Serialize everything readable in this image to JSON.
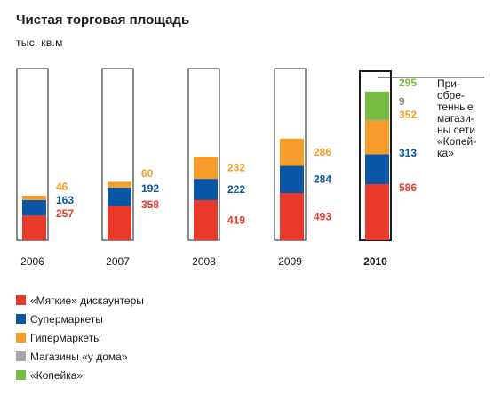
{
  "title": "Чистая торговая площадь",
  "subtitle": "тыс. кв.м",
  "colors": {
    "soft_discounters": "#e8392b",
    "supermarkets": "#0a56a5",
    "hypermarkets": "#f59c2b",
    "convenience": "#a6a6a6",
    "kopeika": "#77bd43"
  },
  "legend": [
    {
      "key": "soft_discounters",
      "label": "«Мягкие» дискаунтеры"
    },
    {
      "key": "supermarkets",
      "label": "Супермаркеты"
    },
    {
      "key": "hypermarkets",
      "label": "Гипермаркеты"
    },
    {
      "key": "convenience",
      "label": "Магазины «у дома»"
    },
    {
      "key": "kopeika",
      "label": "«Копейка»"
    }
  ],
  "note": "При-\nобре-\nтенные\nмагази-\nны сети\n«Копей-\nка»",
  "chart_data": {
    "type": "bar",
    "stacked": true,
    "categories": [
      "2006",
      "2007",
      "2008",
      "2009",
      "2010"
    ],
    "highlight_category": "2010",
    "series": [
      {
        "name": "«Мягкие» дискаунтеры",
        "key": "soft_discounters",
        "values": [
          257,
          358,
          419,
          493,
          586
        ]
      },
      {
        "name": "Супермаркеты",
        "key": "supermarkets",
        "values": [
          163,
          192,
          222,
          284,
          313
        ]
      },
      {
        "name": "Гипермаркеты",
        "key": "hypermarkets",
        "values": [
          46,
          60,
          232,
          286,
          352
        ]
      },
      {
        "name": "Магазины «у дома»",
        "key": "convenience",
        "values": [
          0,
          0,
          0,
          0,
          9
        ]
      },
      {
        "name": "«Копейка»",
        "key": "kopeika",
        "values": [
          0,
          0,
          0,
          0,
          295
        ]
      }
    ]
  }
}
